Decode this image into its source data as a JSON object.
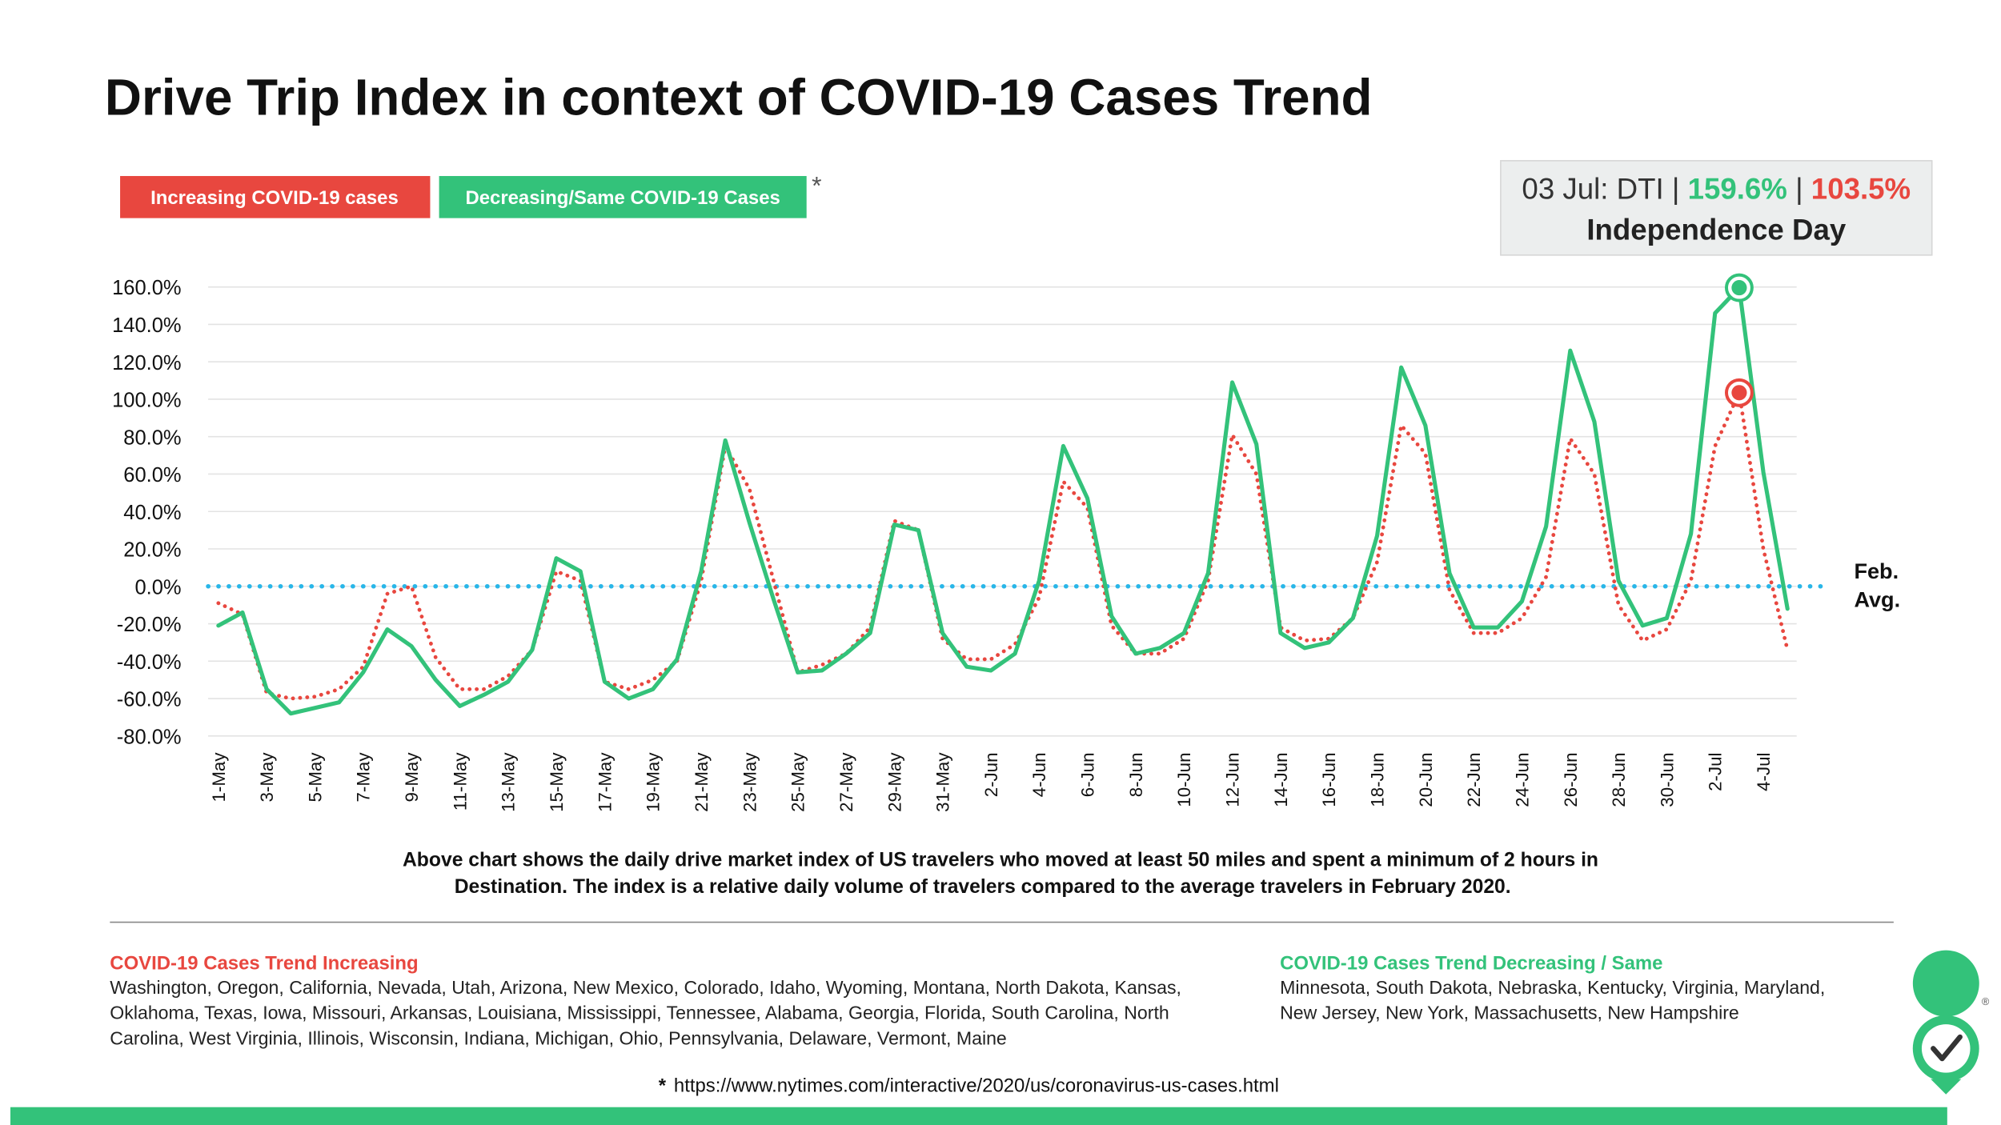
{
  "chart_data": {
    "type": "line",
    "title": "Drive Trip Index in context of COVID-19 Cases Trend",
    "legend_note": "*",
    "categories": [
      "1-May",
      null,
      "3-May",
      null,
      "5-May",
      null,
      "7-May",
      null,
      "9-May",
      null,
      "11-May",
      null,
      "13-May",
      null,
      "15-May",
      null,
      "17-May",
      null,
      "19-May",
      null,
      "21-May",
      null,
      "23-May",
      null,
      "25-May",
      null,
      "27-May",
      null,
      "29-May",
      null,
      "31-May",
      null,
      "2-Jun",
      null,
      "4-Jun",
      null,
      "6-Jun",
      null,
      "8-Jun",
      null,
      "10-Jun",
      null,
      "12-Jun",
      null,
      "14-Jun",
      null,
      "16-Jun",
      null,
      "18-Jun",
      null,
      "20-Jun",
      null,
      "22-Jun",
      null,
      "24-Jun",
      null,
      "26-Jun",
      null,
      "28-Jun",
      null,
      "30-Jun",
      null,
      "2-Jul",
      null,
      "4-Jul",
      null
    ],
    "series": [
      {
        "name": "Increasing COVID-19 cases",
        "color": "#e8473f",
        "style": "dotted",
        "values": [
          -9,
          -15,
          -57,
          -60,
          -59,
          -55,
          -43,
          -4,
          0,
          -38,
          -55,
          -55,
          -48,
          -34,
          8,
          3,
          -51,
          -55,
          -50,
          -40,
          3,
          75,
          52,
          3,
          -46,
          -42,
          -36,
          -22,
          35,
          30,
          -28,
          -39,
          -39,
          -31,
          -6,
          56,
          42,
          -21,
          -36,
          -36,
          -28,
          3,
          81,
          60,
          -22,
          -29,
          -28,
          -17,
          13,
          86,
          71,
          -2,
          -25,
          -25,
          -17,
          5,
          79,
          60,
          -10,
          -29,
          -23,
          3,
          75,
          103.5,
          20,
          -34
        ]
      },
      {
        "name": "Decreasing/Same COVID-19 Cases",
        "color": "#33c27a",
        "style": "solid",
        "values": [
          -21,
          -14,
          -55,
          -68,
          -65,
          -62,
          -46,
          -23,
          -32,
          -50,
          -64,
          -58,
          -51,
          -34,
          15,
          8,
          -51,
          -60,
          -55,
          -39,
          8,
          78,
          34,
          -7,
          -46,
          -45,
          -36,
          -25,
          33,
          30,
          -25,
          -43,
          -45,
          -36,
          3,
          75,
          47,
          -16,
          -36,
          -33,
          -25,
          7,
          109,
          76,
          -25,
          -33,
          -30,
          -17,
          27,
          117,
          86,
          7,
          -22,
          -22,
          -8,
          32,
          126,
          88,
          3,
          -21,
          -17,
          28,
          146,
          159.6,
          61,
          -12
        ]
      }
    ],
    "ylim": [
      -80,
      160
    ],
    "yticks": [
      {
        "value": -80,
        "label": "-80.0%"
      },
      {
        "value": -60,
        "label": "-60.0%"
      },
      {
        "value": -40,
        "label": "-40.0%"
      },
      {
        "value": -20,
        "label": "-20.0%"
      },
      {
        "value": 0,
        "label": "0.0%"
      },
      {
        "value": 20,
        "label": "20.0%"
      },
      {
        "value": 40,
        "label": "40.0%"
      },
      {
        "value": 60,
        "label": "60.0%"
      },
      {
        "value": 80,
        "label": "80.0%"
      },
      {
        "value": 100,
        "label": "100.0%"
      },
      {
        "value": 120,
        "label": "120.0%"
      },
      {
        "value": 140,
        "label": "140.0%"
      },
      {
        "value": 160,
        "label": "160.0%"
      }
    ],
    "grid": true,
    "reference_line": {
      "value": 0,
      "color": "#29b6e8",
      "label": [
        "Feb.",
        "Avg."
      ]
    },
    "annotation": {
      "date_label": "03 Jul: DTI",
      "separator": "|",
      "decreasing_label": "159.6%",
      "increasing_label": "103.5%",
      "title": "Independence Day"
    },
    "caption": [
      "Above chart shows the daily drive market index of US travelers who moved at least 50 miles and spent a minimum of 2 hours in",
      "Destination. The index is a relative daily volume of travelers compared to the average travelers in February 2020."
    ],
    "increasing_states": {
      "title": "COVID-19 Cases Trend Increasing",
      "lines": [
        "Washington, Oregon, California, Nevada, Utah, Arizona, New Mexico, Colorado, Idaho, Wyoming, Montana, North Dakota, Kansas,",
        "Oklahoma, Texas, Iowa, Missouri,  Arkansas, Louisiana, Mississippi, Tennessee, Alabama, Georgia, Florida, South Carolina, North",
        "Carolina, West Virginia, Illinois, Wisconsin, Indiana, Michigan, Ohio, Pennsylvania, Delaware, Vermont, Maine"
      ]
    },
    "decreasing_states": {
      "title": "COVID-19 Cases Trend Decreasing / Same",
      "lines": [
        "Minnesota, South Dakota, Nebraska, Kentucky, Virginia, Maryland,",
        "New Jersey, New York, Massachusetts,  New Hampshire"
      ]
    },
    "source": {
      "marker": "*",
      "url": "https://www.nytimes.com/interactive/2020/us/coronavirus-us-cases.html"
    },
    "logo_mark": "®"
  }
}
